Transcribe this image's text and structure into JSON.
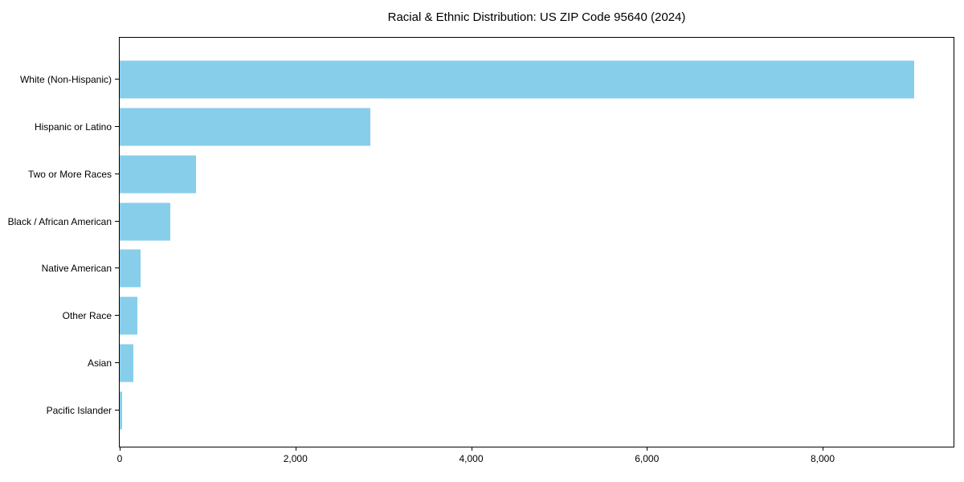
{
  "title": "Racial & Ethnic Distribution: US ZIP Code 95640 (2024)",
  "chart_data": {
    "type": "bar",
    "orientation": "horizontal",
    "title": "Racial & Ethnic Distribution: US ZIP Code 95640 (2024)",
    "xlabel": "",
    "ylabel": "",
    "categories": [
      "White (Non-Hispanic)",
      "Hispanic or Latino",
      "Two or More Races",
      "Black / African American",
      "Native American",
      "Other Race",
      "Asian",
      "Pacific Islander"
    ],
    "values": [
      9040,
      2855,
      870,
      578,
      240,
      201,
      156,
      23
    ],
    "xlim": [
      0,
      9490
    ],
    "xticks": [
      0,
      2000,
      4000,
      6000,
      8000
    ],
    "xtick_labels": [
      "0",
      "2,000",
      "4,000",
      "6,000",
      "8,000"
    ],
    "grid": false,
    "legend": null,
    "bar_color": "#87CEEB"
  },
  "colors": {
    "bar": "#87CEEB",
    "spine": "#000000",
    "background": "#ffffff",
    "text": "#000000"
  }
}
